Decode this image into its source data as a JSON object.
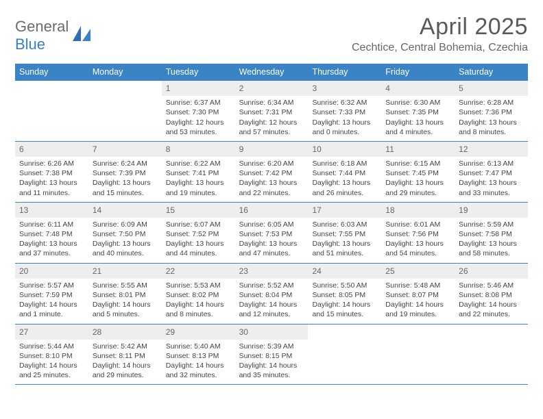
{
  "brand": {
    "text1": "General",
    "text2": "Blue"
  },
  "title": "April 2025",
  "location": "Cechtice, Central Bohemia, Czechia",
  "colors": {
    "header_bg": "#3a84c6",
    "header_text": "#ffffff",
    "daynum_bg": "#eeeeee",
    "body_text": "#444444",
    "title_text": "#5a5a5a",
    "border": "#3a84c6"
  },
  "fonts": {
    "title_pt": 34,
    "location_pt": 16,
    "weekday_pt": 12.5,
    "body_pt": 10.5
  },
  "weekdays": [
    "Sunday",
    "Monday",
    "Tuesday",
    "Wednesday",
    "Thursday",
    "Friday",
    "Saturday"
  ],
  "weeks": [
    [
      null,
      null,
      {
        "n": "1",
        "sr": "Sunrise: 6:37 AM",
        "ss": "Sunset: 7:30 PM",
        "dl": "Daylight: 12 hours and 53 minutes."
      },
      {
        "n": "2",
        "sr": "Sunrise: 6:34 AM",
        "ss": "Sunset: 7:31 PM",
        "dl": "Daylight: 12 hours and 57 minutes."
      },
      {
        "n": "3",
        "sr": "Sunrise: 6:32 AM",
        "ss": "Sunset: 7:33 PM",
        "dl": "Daylight: 13 hours and 0 minutes."
      },
      {
        "n": "4",
        "sr": "Sunrise: 6:30 AM",
        "ss": "Sunset: 7:35 PM",
        "dl": "Daylight: 13 hours and 4 minutes."
      },
      {
        "n": "5",
        "sr": "Sunrise: 6:28 AM",
        "ss": "Sunset: 7:36 PM",
        "dl": "Daylight: 13 hours and 8 minutes."
      }
    ],
    [
      {
        "n": "6",
        "sr": "Sunrise: 6:26 AM",
        "ss": "Sunset: 7:38 PM",
        "dl": "Daylight: 13 hours and 11 minutes."
      },
      {
        "n": "7",
        "sr": "Sunrise: 6:24 AM",
        "ss": "Sunset: 7:39 PM",
        "dl": "Daylight: 13 hours and 15 minutes."
      },
      {
        "n": "8",
        "sr": "Sunrise: 6:22 AM",
        "ss": "Sunset: 7:41 PM",
        "dl": "Daylight: 13 hours and 19 minutes."
      },
      {
        "n": "9",
        "sr": "Sunrise: 6:20 AM",
        "ss": "Sunset: 7:42 PM",
        "dl": "Daylight: 13 hours and 22 minutes."
      },
      {
        "n": "10",
        "sr": "Sunrise: 6:18 AM",
        "ss": "Sunset: 7:44 PM",
        "dl": "Daylight: 13 hours and 26 minutes."
      },
      {
        "n": "11",
        "sr": "Sunrise: 6:15 AM",
        "ss": "Sunset: 7:45 PM",
        "dl": "Daylight: 13 hours and 29 minutes."
      },
      {
        "n": "12",
        "sr": "Sunrise: 6:13 AM",
        "ss": "Sunset: 7:47 PM",
        "dl": "Daylight: 13 hours and 33 minutes."
      }
    ],
    [
      {
        "n": "13",
        "sr": "Sunrise: 6:11 AM",
        "ss": "Sunset: 7:48 PM",
        "dl": "Daylight: 13 hours and 37 minutes."
      },
      {
        "n": "14",
        "sr": "Sunrise: 6:09 AM",
        "ss": "Sunset: 7:50 PM",
        "dl": "Daylight: 13 hours and 40 minutes."
      },
      {
        "n": "15",
        "sr": "Sunrise: 6:07 AM",
        "ss": "Sunset: 7:52 PM",
        "dl": "Daylight: 13 hours and 44 minutes."
      },
      {
        "n": "16",
        "sr": "Sunrise: 6:05 AM",
        "ss": "Sunset: 7:53 PM",
        "dl": "Daylight: 13 hours and 47 minutes."
      },
      {
        "n": "17",
        "sr": "Sunrise: 6:03 AM",
        "ss": "Sunset: 7:55 PM",
        "dl": "Daylight: 13 hours and 51 minutes."
      },
      {
        "n": "18",
        "sr": "Sunrise: 6:01 AM",
        "ss": "Sunset: 7:56 PM",
        "dl": "Daylight: 13 hours and 54 minutes."
      },
      {
        "n": "19",
        "sr": "Sunrise: 5:59 AM",
        "ss": "Sunset: 7:58 PM",
        "dl": "Daylight: 13 hours and 58 minutes."
      }
    ],
    [
      {
        "n": "20",
        "sr": "Sunrise: 5:57 AM",
        "ss": "Sunset: 7:59 PM",
        "dl": "Daylight: 14 hours and 1 minute."
      },
      {
        "n": "21",
        "sr": "Sunrise: 5:55 AM",
        "ss": "Sunset: 8:01 PM",
        "dl": "Daylight: 14 hours and 5 minutes."
      },
      {
        "n": "22",
        "sr": "Sunrise: 5:53 AM",
        "ss": "Sunset: 8:02 PM",
        "dl": "Daylight: 14 hours and 8 minutes."
      },
      {
        "n": "23",
        "sr": "Sunrise: 5:52 AM",
        "ss": "Sunset: 8:04 PM",
        "dl": "Daylight: 14 hours and 12 minutes."
      },
      {
        "n": "24",
        "sr": "Sunrise: 5:50 AM",
        "ss": "Sunset: 8:05 PM",
        "dl": "Daylight: 14 hours and 15 minutes."
      },
      {
        "n": "25",
        "sr": "Sunrise: 5:48 AM",
        "ss": "Sunset: 8:07 PM",
        "dl": "Daylight: 14 hours and 19 minutes."
      },
      {
        "n": "26",
        "sr": "Sunrise: 5:46 AM",
        "ss": "Sunset: 8:08 PM",
        "dl": "Daylight: 14 hours and 22 minutes."
      }
    ],
    [
      {
        "n": "27",
        "sr": "Sunrise: 5:44 AM",
        "ss": "Sunset: 8:10 PM",
        "dl": "Daylight: 14 hours and 25 minutes."
      },
      {
        "n": "28",
        "sr": "Sunrise: 5:42 AM",
        "ss": "Sunset: 8:11 PM",
        "dl": "Daylight: 14 hours and 29 minutes."
      },
      {
        "n": "29",
        "sr": "Sunrise: 5:40 AM",
        "ss": "Sunset: 8:13 PM",
        "dl": "Daylight: 14 hours and 32 minutes."
      },
      {
        "n": "30",
        "sr": "Sunrise: 5:39 AM",
        "ss": "Sunset: 8:15 PM",
        "dl": "Daylight: 14 hours and 35 minutes."
      },
      null,
      null,
      null
    ]
  ]
}
